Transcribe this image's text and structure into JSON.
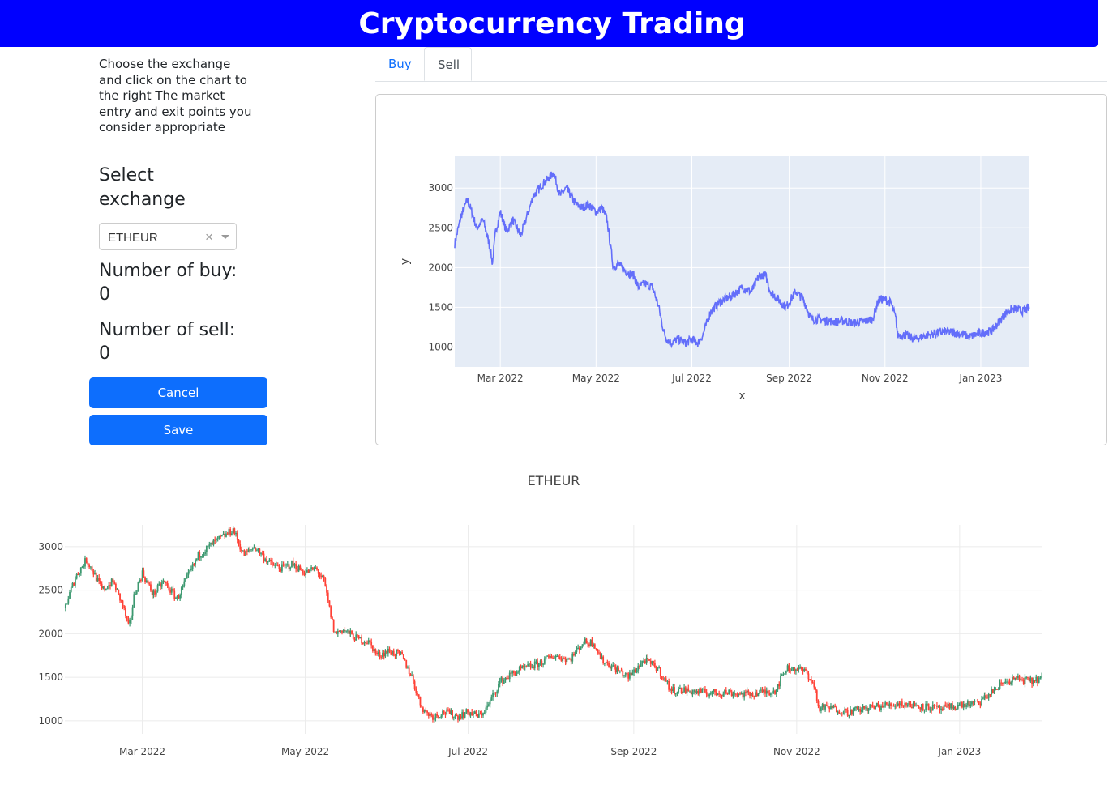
{
  "header": {
    "title": "Cryptocurrency Trading"
  },
  "sidebar": {
    "instructions": "Choose the exchange and click on the chart to the right The market entry and exit points you consider appropriate",
    "select_heading": "Select exchange",
    "exchange_value": "ETHEUR",
    "clear_symbol": "×",
    "buy_label": "Number of buy:",
    "buy_count": "0",
    "sell_label": "Number of sell:",
    "sell_count": "0",
    "cancel_label": "Cancel",
    "save_label": "Save"
  },
  "tabs": [
    {
      "label": "Buy",
      "active": false
    },
    {
      "label": "Sell",
      "active": true
    }
  ],
  "colors": {
    "header_bg": "#0000ff",
    "button": "#0d6efd",
    "line": "#636efa",
    "increasing": "#3d9970",
    "decreasing": "#ff4136",
    "plot_bg": "#e5ecf6"
  },
  "chart_data": [
    {
      "type": "line",
      "title": "",
      "xlabel": "x",
      "ylabel": "y",
      "ylim": [
        750,
        3400
      ],
      "xlim": [
        "2022-01-31",
        "2023-02-01"
      ],
      "grid": true,
      "x_ticks": [
        {
          "date": "2022-03-01",
          "label": "Mar 2022"
        },
        {
          "date": "2022-05-01",
          "label": "May 2022"
        },
        {
          "date": "2022-07-01",
          "label": "Jul 2022"
        },
        {
          "date": "2022-09-01",
          "label": "Sep 2022"
        },
        {
          "date": "2022-11-01",
          "label": "Nov 2022"
        },
        {
          "date": "2023-01-01",
          "label": "Jan 2023"
        }
      ],
      "y_ticks": [
        1000,
        1500,
        2000,
        2500,
        3000
      ],
      "series": [
        {
          "x": [
            "2022-01-31",
            "2022-02-04",
            "2022-02-08",
            "2022-02-10",
            "2022-02-14",
            "2022-02-18",
            "2022-02-22",
            "2022-02-24",
            "2022-02-26",
            "2022-03-01",
            "2022-03-05",
            "2022-03-09",
            "2022-03-14",
            "2022-03-18",
            "2022-03-22",
            "2022-03-28",
            "2022-04-02",
            "2022-04-04",
            "2022-04-08",
            "2022-04-12",
            "2022-04-18",
            "2022-04-22",
            "2022-04-26",
            "2022-05-01",
            "2022-05-05",
            "2022-05-08",
            "2022-05-10",
            "2022-05-12",
            "2022-05-15",
            "2022-05-20",
            "2022-05-25",
            "2022-05-28",
            "2022-06-01",
            "2022-06-06",
            "2022-06-10",
            "2022-06-13",
            "2022-06-15",
            "2022-06-18",
            "2022-06-22",
            "2022-06-27",
            "2022-07-01",
            "2022-07-05",
            "2022-07-08",
            "2022-07-13",
            "2022-07-18",
            "2022-07-22",
            "2022-07-27",
            "2022-08-02",
            "2022-08-08",
            "2022-08-13",
            "2022-08-17",
            "2022-08-20",
            "2022-08-25",
            "2022-08-30",
            "2022-09-05",
            "2022-09-10",
            "2022-09-15",
            "2022-09-20",
            "2022-09-25",
            "2022-10-01",
            "2022-10-06",
            "2022-10-12",
            "2022-10-18",
            "2022-10-24",
            "2022-10-28",
            "2022-11-01",
            "2022-11-05",
            "2022-11-08",
            "2022-11-09",
            "2022-11-14",
            "2022-11-20",
            "2022-11-28",
            "2022-12-05",
            "2022-12-10",
            "2022-12-15",
            "2022-12-20",
            "2022-12-25",
            "2023-01-01",
            "2023-01-08",
            "2023-01-13",
            "2023-01-18",
            "2023-01-22",
            "2023-01-28",
            "2023-02-01"
          ],
          "y": [
            2300,
            2650,
            2850,
            2750,
            2500,
            2600,
            2300,
            2050,
            2450,
            2700,
            2450,
            2600,
            2400,
            2650,
            2900,
            3050,
            3150,
            3200,
            2900,
            3000,
            2800,
            2750,
            2800,
            2700,
            2750,
            2600,
            2300,
            2000,
            2050,
            1950,
            1900,
            1750,
            1800,
            1750,
            1500,
            1200,
            1100,
            1050,
            1100,
            1050,
            1100,
            1050,
            1150,
            1450,
            1550,
            1600,
            1650,
            1750,
            1700,
            1900,
            1900,
            1700,
            1600,
            1500,
            1700,
            1600,
            1350,
            1350,
            1330,
            1320,
            1330,
            1300,
            1320,
            1350,
            1600,
            1600,
            1550,
            1350,
            1150,
            1150,
            1100,
            1150,
            1180,
            1200,
            1180,
            1160,
            1130,
            1180,
            1200,
            1330,
            1450,
            1480,
            1450,
            1500
          ]
        }
      ]
    },
    {
      "type": "candlestick",
      "title": "ETHEUR",
      "xlabel": "",
      "ylabel": "",
      "ylim": [
        850,
        3250
      ],
      "xlim": [
        "2022-01-31",
        "2023-02-01"
      ],
      "grid": true,
      "x_ticks": [
        {
          "date": "2022-03-01",
          "label": "Mar 2022"
        },
        {
          "date": "2022-05-01",
          "label": "May 2022"
        },
        {
          "date": "2022-07-01",
          "label": "Jul 2022"
        },
        {
          "date": "2022-09-01",
          "label": "Sep 2022"
        },
        {
          "date": "2022-11-01",
          "label": "Nov 2022"
        },
        {
          "date": "2023-01-01",
          "label": "Jan 2023"
        }
      ],
      "y_ticks": [
        1000,
        1500,
        2000,
        2500,
        3000
      ],
      "series_ref": "same price path as line chart"
    }
  ]
}
